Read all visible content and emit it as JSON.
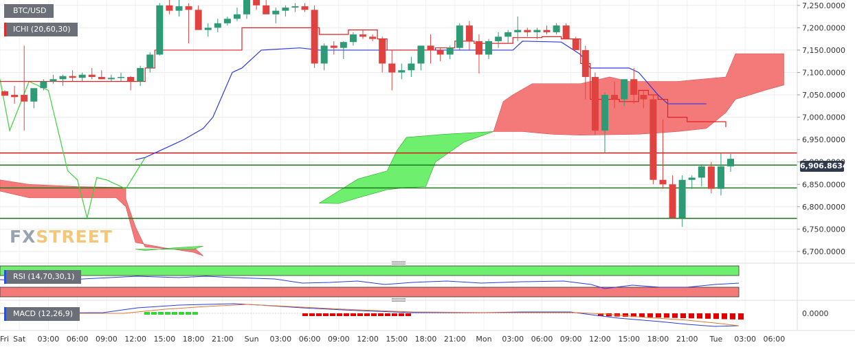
{
  "symbol": "BTC/USD",
  "indicators": {
    "ichimoku": "ICHI (20,60,30)",
    "rsi": "RSI (14,70,30,1)",
    "macd": "MACD (12,26,9)"
  },
  "watermark": {
    "part1": "FX",
    "part2": "STREET"
  },
  "current_price": "6,906.8634",
  "colors": {
    "bull": "#2e9a76",
    "bear": "#e0433f",
    "tenkan": "#e02020",
    "kijun": "#2b3ae0",
    "chikou": "#3ad23a",
    "cloud_bull": "#6ef06e",
    "cloud_bear": "#f47a7a",
    "level_red": "#d01818",
    "level_green": "#1a7a1a"
  },
  "chart_data": {
    "type": "candlestick",
    "y_axis_labels": [
      "7,250.0000",
      "7,200.0000",
      "7,150.0000",
      "7,100.0000",
      "7,050.0000",
      "7,000.0000",
      "6,950.0000",
      "6,900.0000",
      "6,850.0000",
      "6,800.0000",
      "6,750.0000",
      "6,700.0000"
    ],
    "y_ticks": [
      7250,
      7200,
      7150,
      7100,
      7050,
      7000,
      6950,
      6900,
      6850,
      6800,
      6750,
      6700
    ],
    "ylim": [
      6683,
      7262
    ],
    "x_labels": [
      "Fri",
      "Sat",
      "03:00",
      "06:00",
      "09:00",
      "12:00",
      "15:00",
      "18:00",
      "21:00",
      "Sun",
      "03:00",
      "06:00",
      "09:00",
      "12:00",
      "15:00",
      "18:00",
      "21:00",
      "Mon",
      "03:00",
      "06:00",
      "09:00",
      "12:00",
      "15:00",
      "18:00",
      "21:00",
      "Tue",
      "03:00",
      "06:00"
    ],
    "x_label_slots": [
      0,
      2,
      5,
      8,
      11,
      14,
      17,
      20,
      23,
      26,
      29,
      32,
      35,
      38,
      41,
      44,
      47,
      50,
      53,
      56,
      59,
      62,
      65,
      68,
      71,
      74,
      77,
      80
    ],
    "candles": [
      [
        7058,
        7060,
        7052,
        7048
      ],
      [
        7050,
        7070,
        7030,
        7045
      ],
      [
        7050,
        7160,
        6970,
        7035
      ],
      [
        7035,
        7060,
        7020,
        7065
      ],
      [
        7065,
        7085,
        7060,
        7080
      ],
      [
        7080,
        7095,
        7075,
        7085
      ],
      [
        7085,
        7095,
        7070,
        7092
      ],
      [
        7092,
        7105,
        7080,
        7088
      ],
      [
        7088,
        7100,
        7080,
        7095
      ],
      [
        7095,
        7110,
        7085,
        7090
      ],
      [
        7090,
        7105,
        7085,
        7085
      ],
      [
        7085,
        7095,
        7080,
        7088
      ],
      [
        7088,
        7100,
        7080,
        7090
      ],
      [
        7090,
        7092,
        7060,
        7080
      ],
      [
        7080,
        7115,
        7070,
        7110
      ],
      [
        7110,
        7145,
        7100,
        7140
      ],
      [
        7140,
        7255,
        7138,
        7250
      ],
      [
        7250,
        7280,
        7230,
        7238
      ],
      [
        7238,
        7270,
        7225,
        7248
      ],
      [
        7248,
        7255,
        7165,
        7240
      ],
      [
        7240,
        7250,
        7200,
        7195
      ],
      [
        7195,
        7210,
        7180,
        7200
      ],
      [
        7200,
        7220,
        7190,
        7210
      ],
      [
        7210,
        7225,
        7205,
        7220
      ],
      [
        7220,
        7245,
        7215,
        7230
      ],
      [
        7230,
        7300,
        7220,
        7285
      ],
      [
        7285,
        7295,
        7240,
        7250
      ],
      [
        7250,
        7280,
        7230,
        7230
      ],
      [
        7230,
        7245,
        7210,
        7238
      ],
      [
        7238,
        7250,
        7225,
        7245
      ],
      [
        7245,
        7255,
        7235,
        7248
      ],
      [
        7248,
        7255,
        7235,
        7240
      ],
      [
        7240,
        7250,
        7110,
        7120
      ],
      [
        7120,
        7165,
        7105,
        7160
      ],
      [
        7160,
        7170,
        7140,
        7155
      ],
      [
        7155,
        7170,
        7130,
        7168
      ],
      [
        7168,
        7190,
        7160,
        7185
      ],
      [
        7185,
        7195,
        7175,
        7180
      ],
      [
        7180,
        7185,
        7170,
        7175
      ],
      [
        7175,
        7180,
        7100,
        7120
      ],
      [
        7120,
        7150,
        7060,
        7100
      ],
      [
        7100,
        7120,
        7085,
        7105
      ],
      [
        7105,
        7135,
        7090,
        7120
      ],
      [
        7120,
        7160,
        7105,
        7160
      ],
      [
        7160,
        7185,
        7120,
        7150
      ],
      [
        7150,
        7155,
        7125,
        7140
      ],
      [
        7140,
        7160,
        7130,
        7155
      ],
      [
        7155,
        7210,
        7150,
        7205
      ],
      [
        7205,
        7215,
        7150,
        7170
      ],
      [
        7170,
        7185,
        7098,
        7140
      ],
      [
        7140,
        7175,
        7130,
        7170
      ],
      [
        7170,
        7190,
        7155,
        7180
      ],
      [
        7180,
        7195,
        7165,
        7190
      ],
      [
        7190,
        7225,
        7170,
        7195
      ],
      [
        7195,
        7200,
        7180,
        7190
      ],
      [
        7190,
        7200,
        7175,
        7195
      ],
      [
        7195,
        7205,
        7185,
        7190
      ],
      [
        7190,
        7210,
        7185,
        7205
      ],
      [
        7205,
        7210,
        7175,
        7175
      ],
      [
        7175,
        7180,
        7150,
        7150
      ],
      [
        7150,
        7160,
        7040,
        7090
      ],
      [
        7090,
        7100,
        6960,
        6970
      ],
      [
        6970,
        7055,
        6920,
        7050
      ],
      [
        7050,
        7080,
        7020,
        7040
      ],
      [
        7040,
        7080,
        7025,
        7085
      ],
      [
        7085,
        7110,
        7030,
        7050
      ],
      [
        7050,
        7060,
        7020,
        7040
      ],
      [
        7040,
        7050,
        6850,
        6860
      ],
      [
        6860,
        6995,
        6840,
        6850
      ],
      [
        6850,
        6870,
        6775,
        6775
      ],
      [
        6775,
        6870,
        6755,
        6860
      ],
      [
        6860,
        6870,
        6840,
        6865
      ],
      [
        6865,
        6895,
        6845,
        6890
      ],
      [
        6890,
        6900,
        6830,
        6840
      ],
      [
        6840,
        6920,
        6825,
        6890
      ],
      [
        6890,
        6918,
        6878,
        6907
      ]
    ],
    "tenkan_sen": [
      [
        0,
        7080
      ],
      [
        6,
        7080
      ],
      [
        13,
        7080
      ],
      [
        15,
        7110
      ],
      [
        16,
        7150
      ],
      [
        25,
        7200
      ],
      [
        32,
        7200
      ],
      [
        33,
        7185
      ],
      [
        36,
        7195
      ],
      [
        39,
        7175
      ],
      [
        40,
        7150
      ],
      [
        44,
        7150
      ],
      [
        45,
        7155
      ],
      [
        47,
        7170
      ],
      [
        49,
        7165
      ],
      [
        53,
        7178
      ],
      [
        56,
        7180
      ],
      [
        58,
        7175
      ],
      [
        60,
        7120
      ],
      [
        61,
        7040
      ],
      [
        64,
        7035
      ],
      [
        66,
        7060
      ],
      [
        67,
        7050
      ],
      [
        68,
        7040
      ],
      [
        69,
        7000
      ],
      [
        71,
        6990
      ],
      [
        74,
        6990
      ],
      [
        75,
        6978
      ]
    ],
    "kijun_sen": [
      [
        14,
        6905
      ],
      [
        15,
        6910
      ],
      [
        18,
        6940
      ],
      [
        19,
        6950
      ],
      [
        21,
        6975
      ],
      [
        22,
        7000
      ],
      [
        24,
        7100
      ],
      [
        25,
        7110
      ],
      [
        27,
        7150
      ],
      [
        31,
        7155
      ],
      [
        33,
        7150
      ],
      [
        53,
        7150
      ],
      [
        54,
        7170
      ],
      [
        58,
        7168
      ],
      [
        60,
        7140
      ],
      [
        61,
        7110
      ],
      [
        65,
        7110
      ],
      [
        66,
        7100
      ],
      [
        68,
        7050
      ],
      [
        69,
        7030
      ],
      [
        73,
        7030
      ]
    ],
    "chikou_span": [
      [
        0,
        7085
      ],
      [
        1,
        6970
      ],
      [
        3,
        7080
      ],
      [
        5,
        7060
      ],
      [
        7,
        6880
      ],
      [
        8,
        6860
      ],
      [
        9,
        6775
      ],
      [
        10,
        6865
      ],
      [
        11,
        6860
      ],
      [
        13,
        6840
      ],
      [
        15,
        6910
      ]
    ],
    "support_resistance": [
      {
        "price": 6920,
        "color": "red"
      },
      {
        "price": 6893,
        "color": "green"
      },
      {
        "price": 6842,
        "color": "green"
      },
      {
        "price": 6774,
        "color": "green"
      }
    ],
    "rsi": {
      "y_axis_label": "",
      "overbought": 70,
      "oversold": 30
    },
    "macd": {
      "y_axis_label": "0.0000"
    }
  }
}
